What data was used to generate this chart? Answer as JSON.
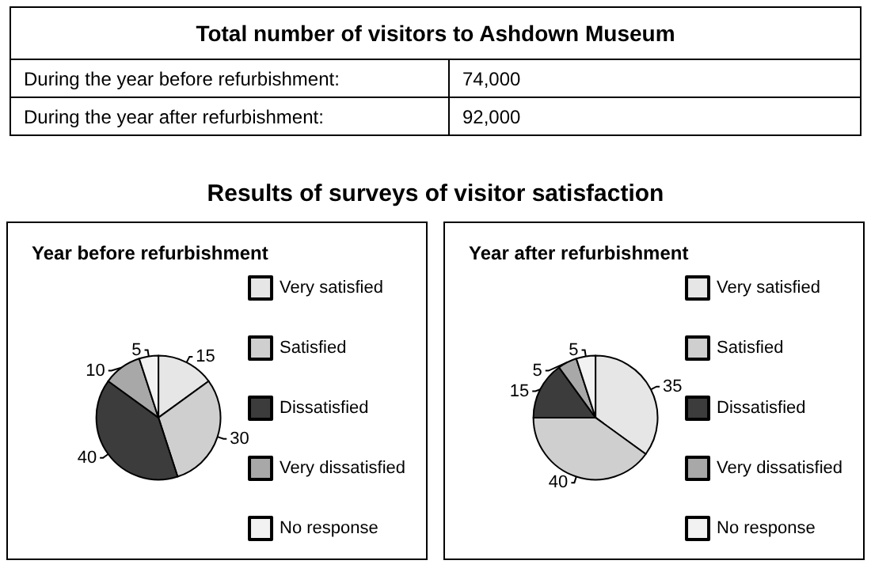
{
  "chart_data": [
    {
      "type": "other",
      "title": "Total number of visitors to Ashdown Museum",
      "annotations": [
        "During the year before refurbishment:",
        "74,000",
        "During the year after refurbishment:",
        "92,000",
        "Results of surveys of visitor satisfaction"
      ]
    },
    {
      "type": "pie",
      "title": "Year before refurbishment",
      "categories": [
        "Very satisfied",
        "Satisfied",
        "Dissatisfied",
        "Very dissatisfied",
        "No response"
      ],
      "values": [
        15,
        30,
        40,
        10,
        5
      ],
      "colors": [
        "#e6e6e6",
        "#cfcfcf",
        "#3c3c3c",
        "#a8a8a8",
        "#f2f2f2"
      ],
      "data_labels": true,
      "legend": "right"
    },
    {
      "type": "pie",
      "title": "Year after refurbishment",
      "categories": [
        "Very satisfied",
        "Satisfied",
        "Dissatisfied",
        "Very dissatisfied",
        "No response"
      ],
      "values": [
        35,
        40,
        15,
        5,
        5
      ],
      "colors": [
        "#e6e6e6",
        "#cfcfcf",
        "#3c3c3c",
        "#a8a8a8",
        "#f2f2f2"
      ],
      "data_labels": true,
      "legend": "right"
    }
  ]
}
